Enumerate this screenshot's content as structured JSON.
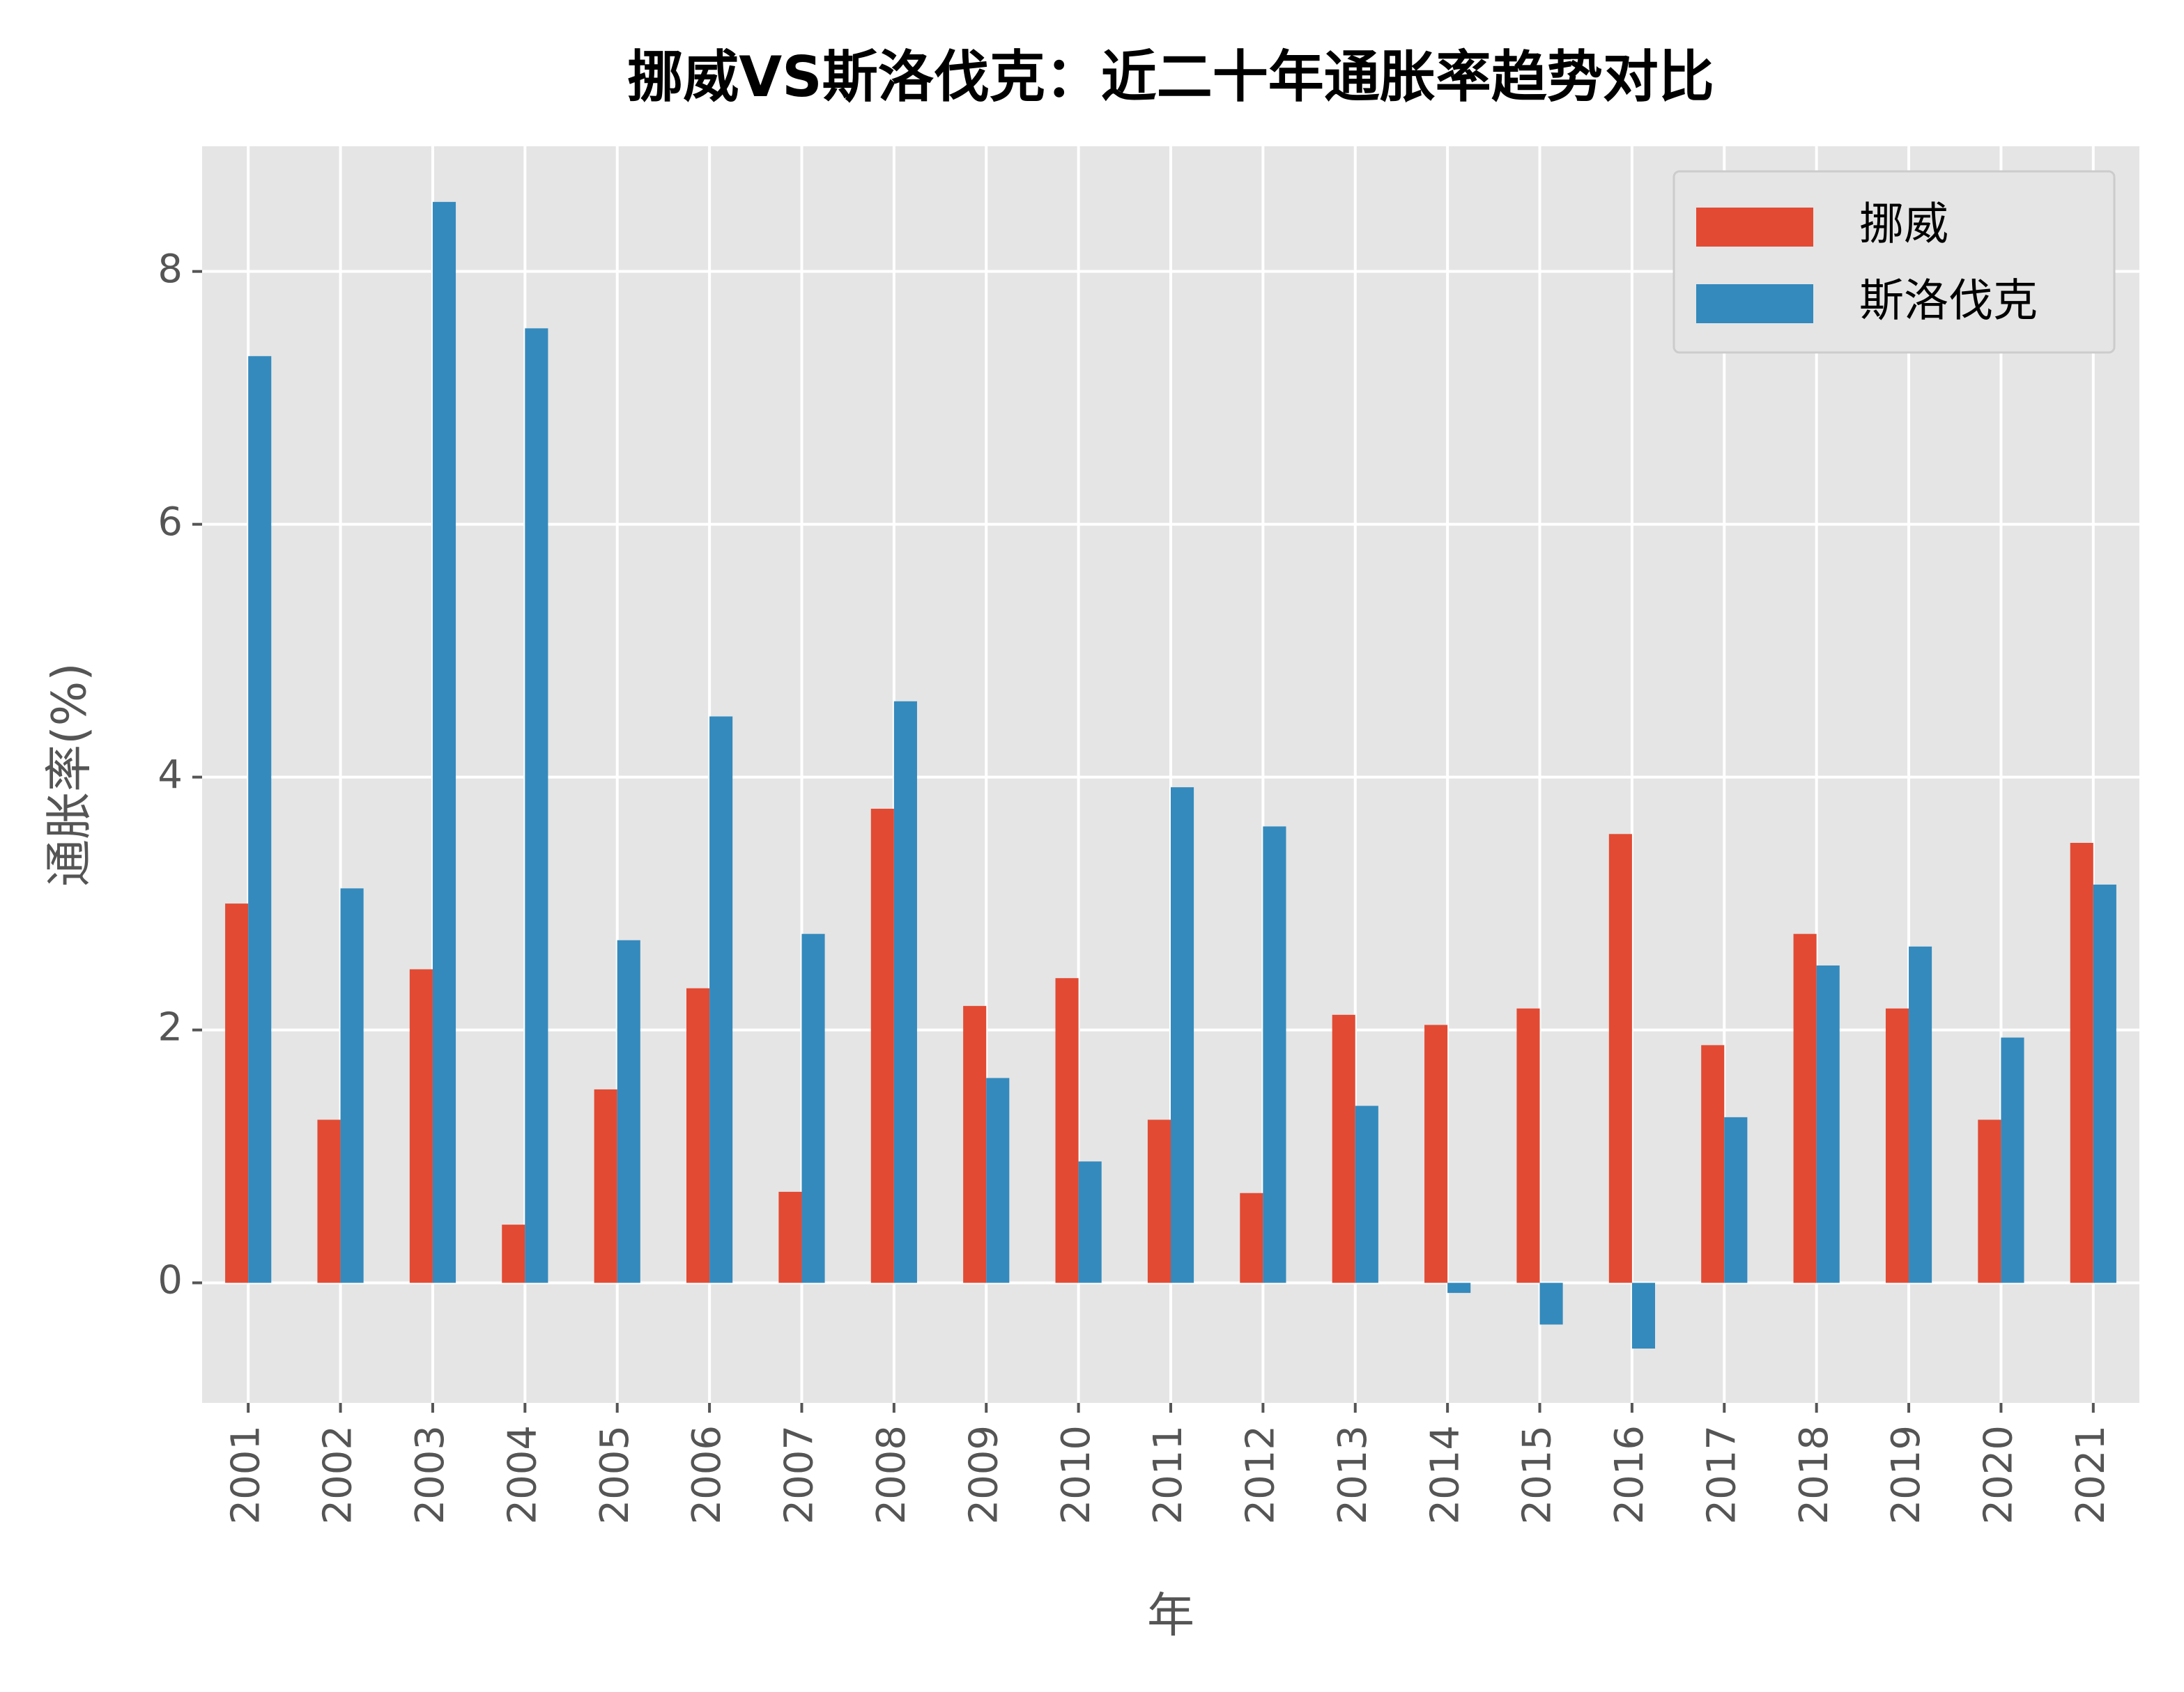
{
  "chart_data": {
    "type": "bar",
    "title": "挪威VS斯洛伐克：近二十年通胀率趋势对比",
    "x_label": "年",
    "y_label": "通胀率(%)",
    "categories": [
      "2001",
      "2002",
      "2003",
      "2004",
      "2005",
      "2006",
      "2007",
      "2008",
      "2009",
      "2010",
      "2011",
      "2012",
      "2013",
      "2014",
      "2015",
      "2016",
      "2017",
      "2018",
      "2019",
      "2020",
      "2021"
    ],
    "series": [
      {
        "name": "挪威",
        "color": "#e24a33",
        "values": [
          3.0,
          1.29,
          2.48,
          0.46,
          1.53,
          2.33,
          0.72,
          3.75,
          2.19,
          2.41,
          1.29,
          0.71,
          2.12,
          2.04,
          2.17,
          3.55,
          1.88,
          2.76,
          2.17,
          1.29,
          3.48
        ]
      },
      {
        "name": "斯洛伐克",
        "color": "#348abd",
        "values": [
          7.33,
          3.12,
          8.55,
          7.55,
          2.71,
          4.48,
          2.76,
          4.6,
          1.62,
          0.96,
          3.92,
          3.61,
          1.4,
          -0.08,
          -0.33,
          -0.52,
          1.31,
          2.51,
          2.66,
          1.94,
          3.15
        ]
      }
    ],
    "ylim": [
      -0.95,
      8.99
    ],
    "yticks": [
      0,
      2,
      4,
      6,
      8
    ],
    "grid": true,
    "legend": "upper right"
  }
}
